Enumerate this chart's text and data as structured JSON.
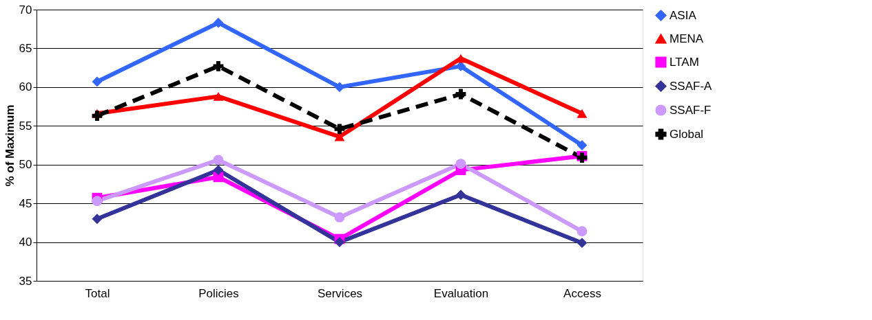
{
  "chart_data": {
    "type": "line",
    "ylabel": "% of Maximum",
    "categories": [
      "Total",
      "Policies",
      "Services",
      "Evaluation",
      "Access"
    ],
    "ylim": [
      35,
      70
    ],
    "yticks": [
      35,
      40,
      45,
      50,
      55,
      60,
      65,
      70
    ],
    "grid": "y",
    "legend": "right",
    "series": [
      {
        "name": "ASIA",
        "color": "#3366ff",
        "marker": "diamond",
        "line_style": "solid",
        "values": [
          60.7,
          68.3,
          60.0,
          62.7,
          52.5
        ]
      },
      {
        "name": "MENA",
        "color": "#ff0000",
        "marker": "triangle",
        "line_style": "solid",
        "values": [
          56.6,
          58.8,
          53.6,
          63.7,
          56.6
        ]
      },
      {
        "name": "LTAM",
        "color": "#ff00ff",
        "marker": "square",
        "line_style": "solid",
        "values": [
          45.7,
          48.4,
          40.4,
          49.3,
          51.1
        ]
      },
      {
        "name": "SSAF-A",
        "color": "#333399",
        "marker": "diamond",
        "line_style": "solid",
        "values": [
          43.0,
          49.3,
          40.0,
          46.1,
          39.9
        ]
      },
      {
        "name": "SSAF-F",
        "color": "#cc99ff",
        "marker": "circle",
        "line_style": "solid",
        "values": [
          45.3,
          50.6,
          43.2,
          50.1,
          41.4
        ]
      },
      {
        "name": "Global",
        "color": "#000000",
        "marker": "cross",
        "line_style": "dashed",
        "values": [
          56.3,
          62.7,
          54.6,
          59.1,
          50.9
        ]
      }
    ]
  }
}
